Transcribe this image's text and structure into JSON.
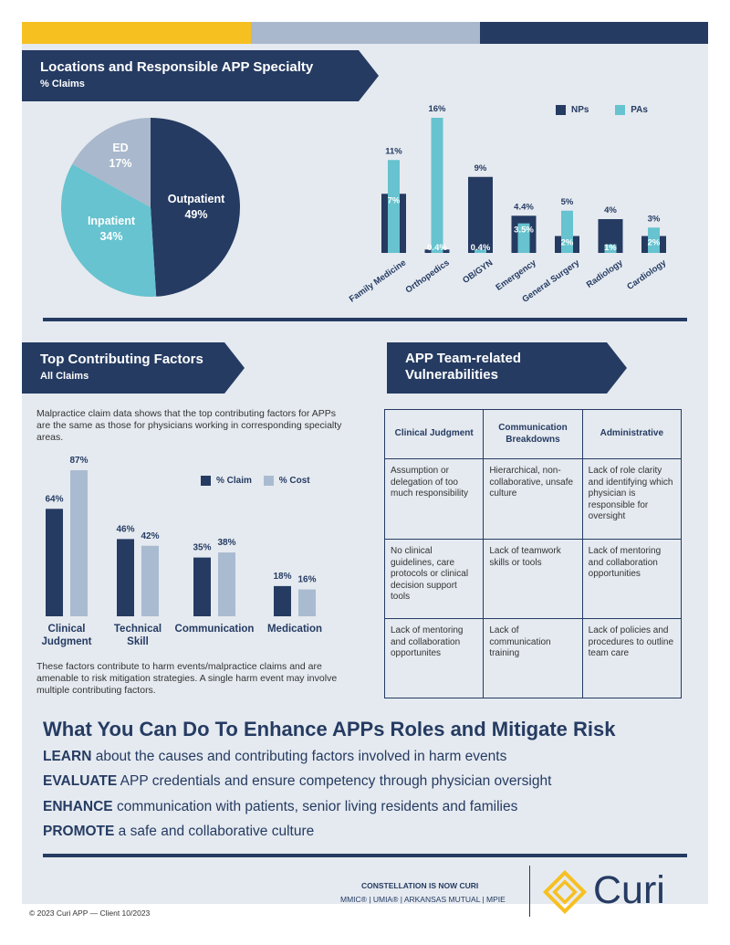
{
  "colors": {
    "navy": "#253b62",
    "yellow": "#f7c021",
    "slate": "#a9b8cc",
    "teal": "#66c3cf",
    "light_blue": "#a9bbd0",
    "gray_bg": "#e5eaf0"
  },
  "locations": {
    "title": "Locations and Responsible APP Specialty",
    "subtitle": "% Claims",
    "pie": [
      {
        "label": "Outpatient",
        "value": "49%",
        "pct": 49,
        "color": "#253b62"
      },
      {
        "label": "Inpatient",
        "value": "34%",
        "pct": 34,
        "color": "#66c3cf"
      },
      {
        "label": "ED",
        "value": "17%",
        "pct": 17,
        "color": "#a9b8cc"
      }
    ]
  },
  "chart_data": [
    {
      "type": "bar",
      "categories": [
        "Family Medicine",
        "Orthopedics",
        "OB/GYN",
        "Emergency",
        "General Surgery",
        "Radiology",
        "Cardiology"
      ],
      "series": [
        {
          "name": "NPs",
          "values": [
            7,
            0.4,
            9,
            4.4,
            2,
            4,
            2
          ],
          "labels": [
            "7%",
            "0.4%",
            "9%",
            "4.4%",
            "2%",
            "4%",
            "2%"
          ],
          "color": "#253b62"
        },
        {
          "name": "PAs",
          "values": [
            11,
            16,
            0.4,
            3.5,
            5,
            1,
            3
          ],
          "labels": [
            "11%",
            "16%",
            "0.4%",
            "3.5%",
            "5%",
            "1%",
            "3%"
          ],
          "color": "#66c3cf"
        }
      ],
      "ylim": [
        0,
        16
      ]
    },
    {
      "type": "bar",
      "categories": [
        "Clinical Judgment",
        "Technical Skill",
        "Communication",
        "Medication"
      ],
      "series": [
        {
          "name": "% Claim",
          "values": [
            64,
            46,
            35,
            18
          ],
          "labels": [
            "64%",
            "46%",
            "35%",
            "18%"
          ],
          "color": "#253b62"
        },
        {
          "name": "% Cost",
          "values": [
            87,
            42,
            38,
            16
          ],
          "labels": [
            "87%",
            "42%",
            "38%",
            "16%"
          ],
          "color": "#a9bbd0"
        }
      ],
      "ylim": [
        0,
        87
      ]
    }
  ],
  "factors": {
    "title": "Top Contributing Factors",
    "subtitle": "All Claims",
    "intro": "Malpractice claim data shows that the top contributing factors for APPs are the same as those for physicians working in corresponding specialty areas.",
    "outro": "These factors contribute to harm events/malpractice claims and are amenable to risk mitigation strategies. A single harm event may involve multiple contributing factors.",
    "category_lines": [
      [
        "Clinical",
        "Judgment"
      ],
      [
        "Technical",
        "Skill"
      ],
      [
        "Communication"
      ],
      [
        "Medication"
      ]
    ]
  },
  "vulnerabilities": {
    "title_line1": "APP Team-related",
    "title_line2": "Vulnerabilities",
    "headers": [
      "Clinical Judgment",
      "Communication Breakdowns",
      "Administrative"
    ],
    "rows": [
      [
        "Assumption or delegation of too much responsibility",
        "Hierarchical, non-collaborative, unsafe culture",
        "Lack of role clarity and identifying which physician is responsible for oversight"
      ],
      [
        "No clinical guidelines, care protocols or clinical decision support tools",
        "Lack of teamwork skills or tools",
        "Lack of mentoring and collaboration opportunities"
      ],
      [
        "Lack of mentoring and collaboration opportunites",
        "Lack of communication training",
        "Lack of policies and procedures to outline team care"
      ]
    ]
  },
  "actions": {
    "heading": "What You Can Do To Enhance APPs Roles and Mitigate Risk",
    "items": [
      {
        "key": "LEARN",
        "text": " about the causes and contributing factors involved in harm events"
      },
      {
        "key": "EVALUATE",
        "text": " APP credentials and ensure competency through physician oversight"
      },
      {
        "key": "ENHANCE",
        "text": " communication with patients, senior living residents and families"
      },
      {
        "key": "PROMOTE",
        "text": " a safe and collaborative culture"
      }
    ]
  },
  "footer": {
    "constellation": "CONSTELLATION IS NOW CURI",
    "brands": "MMIC® | UMIA® | ARKANSAS MUTUAL | MPIE",
    "logo_text": "Curi",
    "copyright": "© 2023 Curi   APP — Client 10/2023"
  }
}
